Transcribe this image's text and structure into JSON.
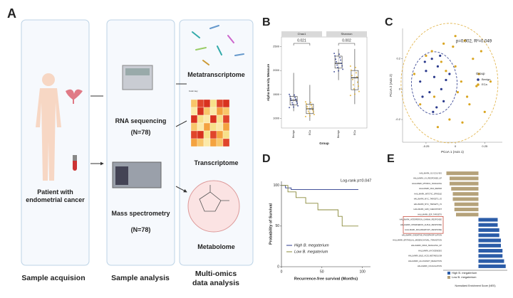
{
  "panel_labels": [
    "A",
    "B",
    "C",
    "D",
    "E"
  ],
  "workflow": {
    "patient": "Patient with endometrial cancer",
    "rna": "RNA sequencing",
    "rna_n": "(N=78)",
    "ms": "Mass spectrometry",
    "ms_n": "(N=78)",
    "heatmap_key": "Color key",
    "omics": [
      "Metatranscriptome",
      "Transcriptome",
      "Metabolome"
    ],
    "stages": [
      "Sample acquision",
      "Sample analysis",
      "Multi-omics data analysis"
    ]
  },
  "chart_data": [
    {
      "type": "box",
      "y_label": "Alpha Diversity Measure",
      "x_label": "Group",
      "categories": [
        "Benign",
        "ECa"
      ],
      "colors": [
        "#2b3a8c",
        "#d9a521"
      ],
      "ylim": [
        800,
        2700
      ],
      "yticks": [
        1000,
        1500,
        2000,
        2500
      ],
      "facets": [
        {
          "name": "Chao1",
          "p": "0.021",
          "boxes": [
            {
              "min": 1150,
              "q1": 1280,
              "median": 1380,
              "q3": 1460,
              "max": 1950
            },
            {
              "min": 950,
              "q1": 1100,
              "median": 1200,
              "q3": 1300,
              "max": 1700
            }
          ]
        },
        {
          "name": "Shannon",
          "p": "0.002",
          "boxes": [
            {
              "min": 1800,
              "q1": 2050,
              "median": 2150,
              "q3": 2300,
              "max": 2450
            },
            {
              "min": 1300,
              "q1": 1600,
              "median": 1850,
              "q3": 2000,
              "max": 2450
            }
          ]
        }
      ]
    },
    {
      "type": "scatter",
      "annotation": "p=0.002, R²=0.049",
      "x_label": "PCoA 1 (Axis 1)",
      "y_label": "PCoA 2 (Axis 2)",
      "legend_title": "Group",
      "xlim": [
        -0.45,
        0.4
      ],
      "ylim": [
        -0.35,
        0.4
      ],
      "xticks": [
        -0.25,
        0,
        0.25
      ],
      "yticks": [
        -0.2,
        0,
        0.2
      ],
      "series": [
        {
          "name": "Benign",
          "color": "#2b3a8c",
          "x": [
            -0.3,
            -0.25,
            -0.22,
            -0.18,
            -0.15,
            -0.12,
            -0.1,
            -0.28,
            -0.2,
            -0.08,
            -0.16,
            -0.05,
            -0.26,
            -0.13,
            -0.19
          ],
          "y": [
            0.05,
            0.12,
            -0.02,
            0.08,
            0.15,
            0.0,
            -0.08,
            -0.05,
            0.2,
            0.06,
            -0.12,
            0.1,
            0.18,
            0.22,
            -0.15
          ]
        },
        {
          "name": "ECa",
          "color": "#d9a521",
          "x": [
            -0.35,
            -0.3,
            -0.2,
            -0.1,
            -0.05,
            0.0,
            0.05,
            0.1,
            0.15,
            0.2,
            0.25,
            -0.15,
            -0.02,
            0.08,
            0.12,
            -0.25,
            0.02,
            0.18,
            -0.08,
            0.3,
            -0.12,
            0.06,
            0.22,
            -0.18,
            0.0
          ],
          "y": [
            0.1,
            -0.1,
            0.25,
            0.3,
            -0.2,
            0.15,
            0.05,
            -0.05,
            0.2,
            0.1,
            -0.15,
            -0.25,
            0.28,
            0.32,
            -0.1,
            0.22,
            -0.02,
            0.02,
            0.12,
            0.05,
            0.18,
            -0.22,
            0.25,
            -0.05,
            0.35
          ]
        }
      ]
    },
    {
      "type": "line",
      "annotation": "Log-rank p=0.047",
      "y_label": "Probability of Survival",
      "x_label": "Recurrence-free survival (Months)",
      "xlim": [
        0,
        110
      ],
      "ylim": [
        0,
        105
      ],
      "xticks": [
        0,
        50,
        100
      ],
      "yticks": [
        0,
        50,
        100
      ],
      "series": [
        {
          "name": "High B. megaterium",
          "color": "#2b3a8c",
          "x": [
            0,
            5,
            5,
            12,
            12,
            95
          ],
          "y": [
            100,
            100,
            97,
            97,
            95,
            95
          ]
        },
        {
          "name": "Low B. megaterium",
          "color": "#8a8a3a",
          "x": [
            0,
            8,
            8,
            18,
            18,
            30,
            30,
            45,
            45,
            70,
            70,
            75,
            75,
            95
          ],
          "y": [
            100,
            100,
            92,
            92,
            85,
            85,
            78,
            78,
            70,
            70,
            62,
            62,
            50,
            50
          ]
        }
      ]
    },
    {
      "type": "barh",
      "x_label": "Normalized Enrichment Score (NES)",
      "xlim": [
        -2.2,
        1.8
      ],
      "categories": [
        "HALLMARK_GLYCOLYSIS",
        "HALLMARK_UV_RESPONSE_UP",
        "HALLMARK_MTORC1_SIGNALING",
        "HALLMARK_DNA_REPAIR",
        "HALLMARK_MITOTIC_SPINDLE",
        "HALLMARK_MYC_TARGETS_V2",
        "HALLMARK_MYC_TARGETS_V1",
        "HALLMARK_G2M_CHECKPOINT",
        "HALLMARK_E2F_TARGETS",
        "HALLMARK_INTERFERON_GAMMA_RESPONSE",
        "HALLMARK_INTERFERON_ALPHA_RESPONSE",
        "HALLMARK_INFLAMMATORY_RESPONSE",
        "HALLMARK_OXIDATIVE_PHOSPHORYLATION",
        "HALLMARK_EPITHELIAL_MESENCHYMAL_TRANSITION",
        "HALLMARK_KRAS_SIGNALING_UP",
        "HALLMARK_MYOGENESIS",
        "HALLMARK_BILE_ACID_METABOLISM",
        "HALLMARK_ALLOGRAFT_REJECTION",
        "HALLMARK_COAGULATION"
      ],
      "values": [
        -2.0,
        -1.8,
        -1.8,
        -1.7,
        -1.6,
        -1.6,
        -1.5,
        -1.5,
        -1.4,
        1.2,
        1.2,
        1.3,
        1.3,
        1.4,
        1.4,
        1.5,
        1.5,
        1.6,
        1.7
      ],
      "legend": [
        {
          "name": "High B. megaterium",
          "color": "#2b5ca8"
        },
        {
          "name": "Low B. megaterium",
          "color": "#b5a27a"
        }
      ]
    }
  ]
}
